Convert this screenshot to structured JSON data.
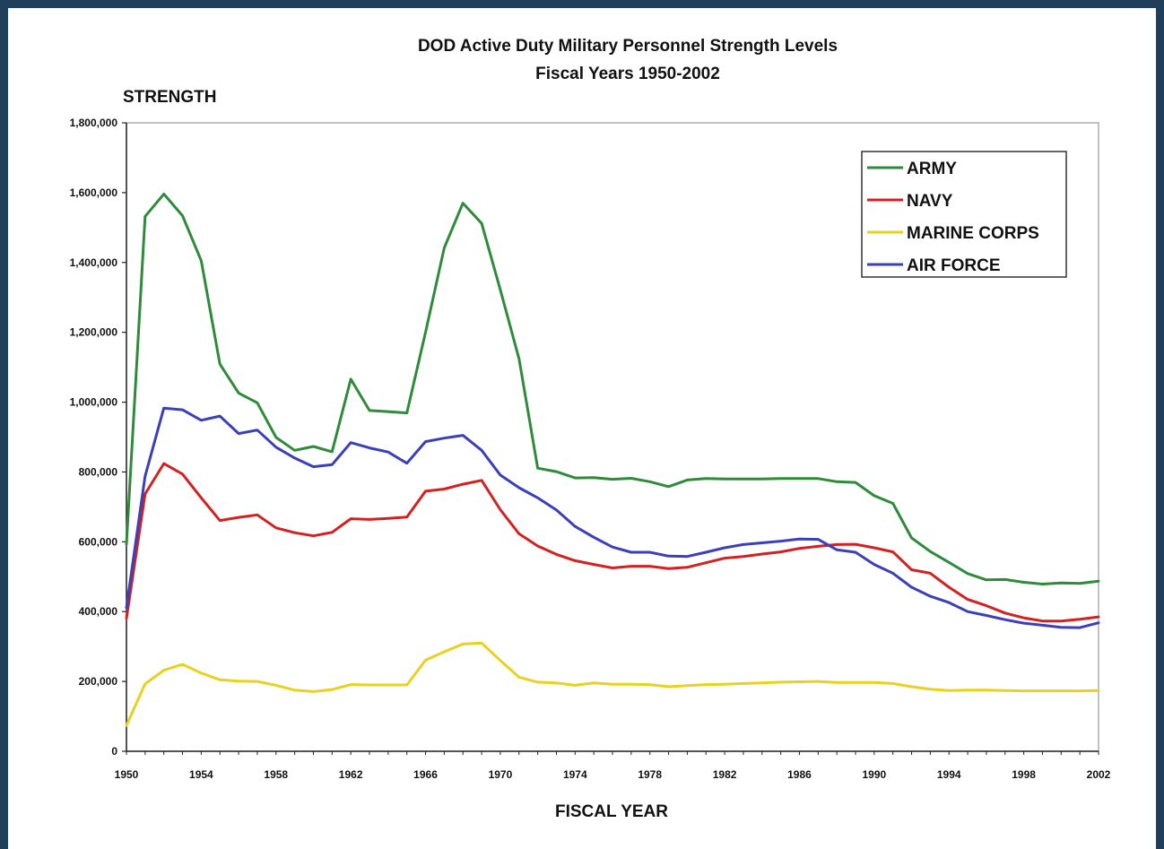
{
  "chart_data": {
    "type": "line",
    "title": "DOD Active Duty Military Personnel Strength Levels",
    "subtitle": "Fiscal Years 1950-2002",
    "ylabel": "STRENGTH",
    "xlabel": "FISCAL YEAR",
    "ylim": [
      0,
      1800000
    ],
    "xlim": [
      1950,
      2002
    ],
    "y_ticks": [
      0,
      200000,
      400000,
      600000,
      800000,
      1000000,
      1200000,
      1400000,
      1600000,
      1800000
    ],
    "y_tick_labels": [
      "0",
      "200,000",
      "400,000",
      "600,000",
      "800,000",
      "1,000,000",
      "1,200,000",
      "1,400,000",
      "1,600,000",
      "1,800,000"
    ],
    "x_ticks": [
      1950,
      1954,
      1958,
      1962,
      1966,
      1970,
      1974,
      1978,
      1982,
      1986,
      1990,
      1994,
      1998,
      2002
    ],
    "x_tick_labels": [
      "1950",
      "1954",
      "1958",
      "1962",
      "1966",
      "1970",
      "1974",
      "1978",
      "1982",
      "1986",
      "1990",
      "1994",
      "1998",
      "2002"
    ],
    "grid": false,
    "legend_position": "top-right",
    "x": [
      1950,
      1951,
      1952,
      1953,
      1954,
      1955,
      1956,
      1957,
      1958,
      1959,
      1960,
      1961,
      1962,
      1963,
      1964,
      1965,
      1966,
      1967,
      1968,
      1969,
      1970,
      1971,
      1972,
      1973,
      1974,
      1975,
      1976,
      1977,
      1978,
      1979,
      1980,
      1981,
      1982,
      1983,
      1984,
      1985,
      1986,
      1987,
      1988,
      1989,
      1990,
      1991,
      1992,
      1993,
      1994,
      1995,
      1996,
      1997,
      1998,
      1999,
      2000,
      2001,
      2002
    ],
    "series": [
      {
        "name": "ARMY",
        "color": "#2e8b3a",
        "values": [
          593000,
          1532000,
          1596000,
          1534000,
          1405000,
          1109000,
          1026000,
          998000,
          899000,
          862000,
          873000,
          858000,
          1066000,
          976000,
          973000,
          969000,
          1200000,
          1442000,
          1570000,
          1512000,
          1322000,
          1124000,
          811000,
          801000,
          783000,
          784000,
          779000,
          782000,
          772000,
          758000,
          777000,
          781000,
          780000,
          780000,
          780000,
          781000,
          781000,
          781000,
          772000,
          770000,
          732000,
          710000,
          611000,
          572000,
          541000,
          509000,
          491000,
          492000,
          484000,
          479000,
          482000,
          481000,
          487000
        ]
      },
      {
        "name": "NAVY",
        "color": "#d42020",
        "values": [
          381000,
          737000,
          824000,
          794000,
          726000,
          661000,
          670000,
          677000,
          640000,
          626000,
          617000,
          627000,
          666000,
          664000,
          667000,
          671000,
          745000,
          751000,
          765000,
          776000,
          692000,
          623000,
          588000,
          564000,
          546000,
          535000,
          525000,
          530000,
          530000,
          523000,
          527000,
          540000,
          553000,
          558000,
          565000,
          571000,
          581000,
          587000,
          592000,
          593000,
          583000,
          571000,
          520000,
          510000,
          470000,
          435000,
          417000,
          396000,
          382000,
          373000,
          373000,
          378000,
          385000
        ]
      },
      {
        "name": "MARINE CORPS",
        "color": "#e8d21f",
        "values": [
          74000,
          193000,
          232000,
          249000,
          224000,
          205000,
          201000,
          200000,
          189000,
          175000,
          171000,
          177000,
          191000,
          190000,
          190000,
          190000,
          261000,
          285000,
          307000,
          310000,
          260000,
          212000,
          198000,
          196000,
          189000,
          196000,
          192000,
          192000,
          191000,
          185000,
          188000,
          191000,
          192000,
          194000,
          196000,
          198000,
          199000,
          200000,
          197000,
          197000,
          197000,
          194000,
          185000,
          178000,
          174000,
          175000,
          175000,
          174000,
          173000,
          173000,
          173000,
          173000,
          174000
        ]
      },
      {
        "name": "AIR FORCE",
        "color": "#3b3fb8",
        "values": [
          411000,
          788000,
          983000,
          978000,
          948000,
          960000,
          910000,
          920000,
          871000,
          840000,
          815000,
          821000,
          884000,
          869000,
          857000,
          825000,
          887000,
          897000,
          905000,
          862000,
          791000,
          755000,
          726000,
          691000,
          644000,
          613000,
          585000,
          570000,
          570000,
          559000,
          558000,
          570000,
          583000,
          592000,
          597000,
          602000,
          608000,
          607000,
          577000,
          570000,
          535000,
          510000,
          470000,
          444000,
          426000,
          400000,
          389000,
          377000,
          367000,
          361000,
          355000,
          354000,
          368000
        ]
      }
    ]
  }
}
